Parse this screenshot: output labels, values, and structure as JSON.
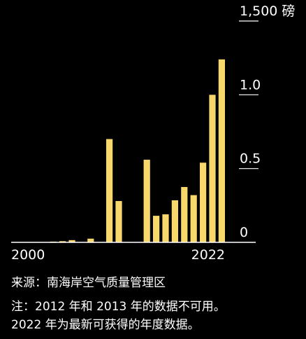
{
  "chart_data": {
    "type": "bar",
    "title": "",
    "xlabel": "",
    "ylabel": "",
    "y_unit_label": "1,500 磅",
    "y_ticks": [
      {
        "value": 0,
        "label": "0"
      },
      {
        "value": 500,
        "label": "0.5"
      },
      {
        "value": 1000,
        "label": "1.0"
      },
      {
        "value": 1500,
        "label": "1,500 磅"
      }
    ],
    "ylim": [
      0,
      1500
    ],
    "x_tick_labels": [
      {
        "year": 2000,
        "label": "2000"
      },
      {
        "year": 2022,
        "label": "2022"
      }
    ],
    "categories": [
      "2000",
      "2001",
      "2002",
      "2003",
      "2004",
      "2005",
      "2006",
      "2007",
      "2008",
      "2009",
      "2010",
      "2011",
      "2012",
      "2013",
      "2014",
      "2015",
      "2016",
      "2017",
      "2018",
      "2019",
      "2020",
      "2021",
      "2022"
    ],
    "values": [
      0,
      0,
      0,
      0,
      5,
      8,
      15,
      0,
      25,
      0,
      700,
      280,
      null,
      null,
      560,
      180,
      190,
      285,
      375,
      320,
      540,
      1000,
      1240
    ],
    "bar_color": "#f8d86a",
    "grid": false
  },
  "footer": {
    "source": "来源：南海岸空气质量管理区",
    "note_line1": "注：2012 年和 2013 年的数据不可用。",
    "note_line2": "2022 年为最新可获得的年度数据。"
  }
}
